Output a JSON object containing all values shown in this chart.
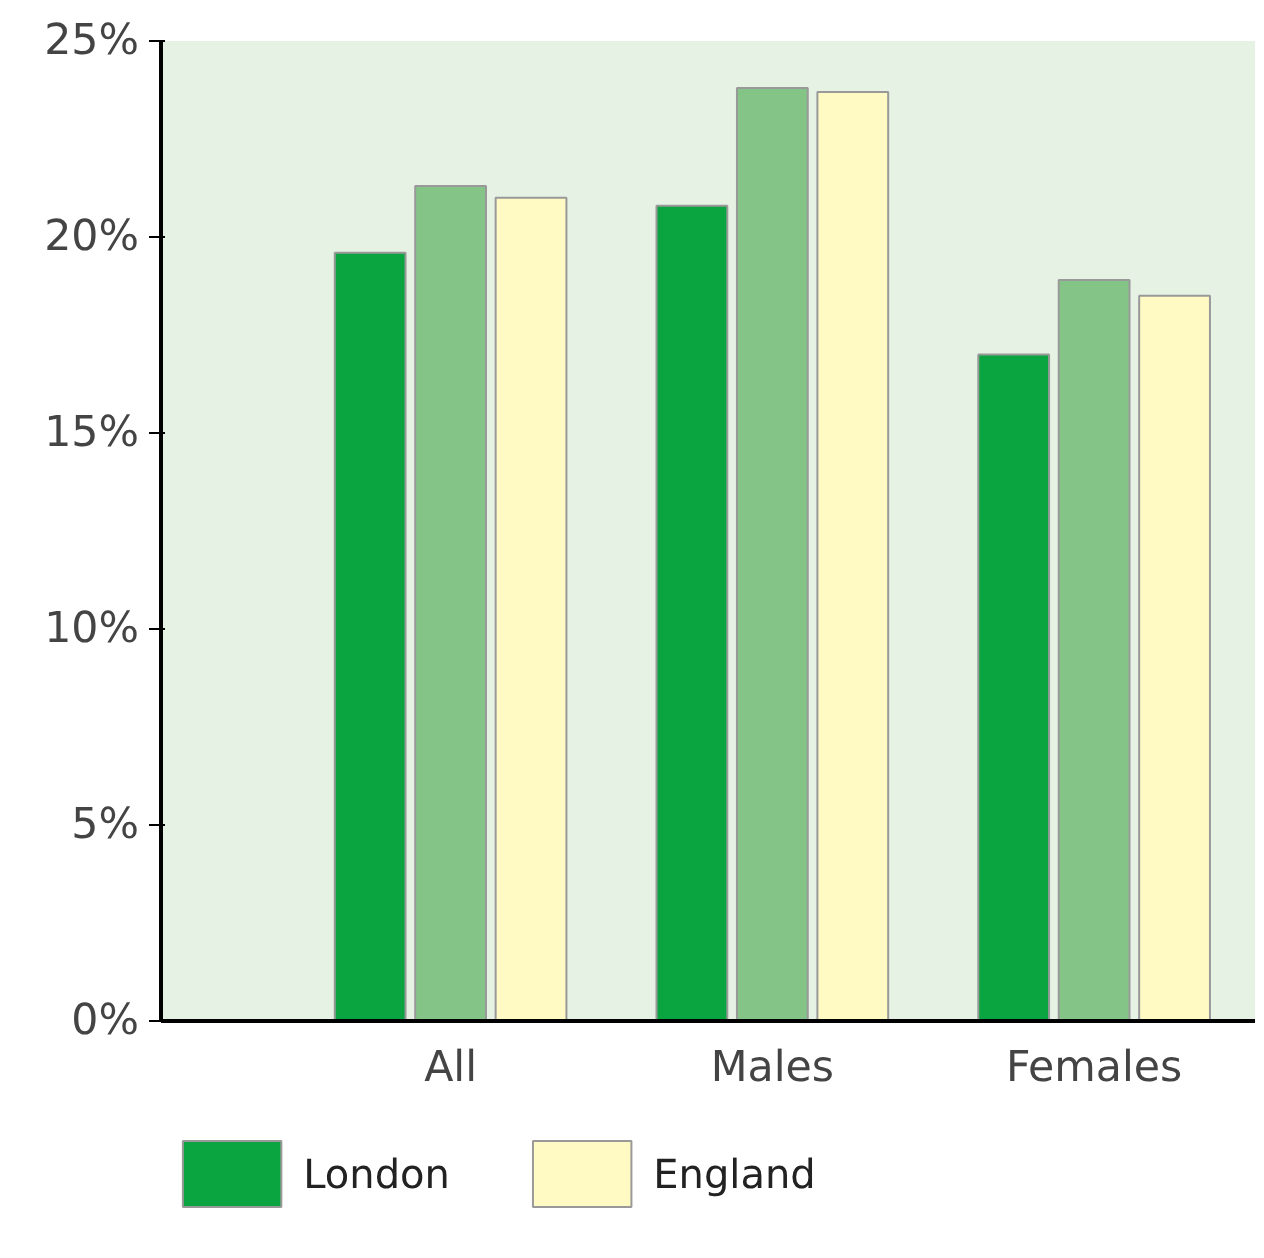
{
  "chart_data": {
    "type": "bar",
    "categories": [
      "All",
      "Males",
      "Females"
    ],
    "series": [
      {
        "name": "London",
        "color": "#0aa540",
        "values": [
          19.6,
          20.8,
          17.0
        ]
      },
      {
        "color": "#84c487",
        "values": [
          21.3,
          23.8,
          18.9
        ]
      },
      {
        "name": "England",
        "color": "#fff9c4",
        "values": [
          21.0,
          23.7,
          18.5
        ]
      }
    ],
    "ylim": [
      0,
      25
    ],
    "yticks": [
      {
        "value": 0,
        "label": "0%"
      },
      {
        "value": 5,
        "label": "5%"
      },
      {
        "value": 10,
        "label": "10%"
      },
      {
        "value": 15,
        "label": "15%"
      },
      {
        "value": 20,
        "label": "20%"
      },
      {
        "value": 25,
        "label": "25%"
      }
    ],
    "grid": false,
    "legend": "bottom"
  }
}
